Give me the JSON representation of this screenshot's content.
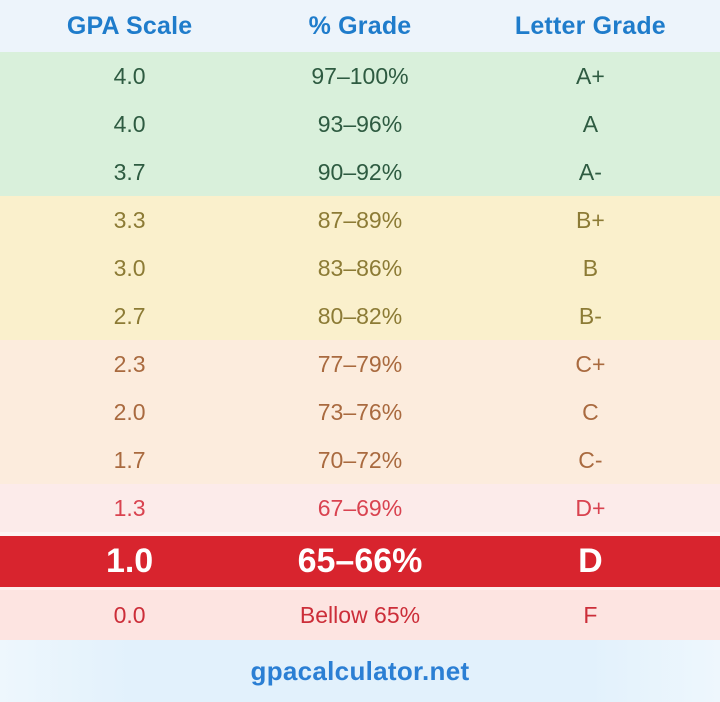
{
  "header": {
    "columns": [
      "GPA Scale",
      "% Grade",
      "Letter Grade"
    ]
  },
  "rows": [
    {
      "gpa": "4.0",
      "percent": "97–100%",
      "letter": "A+",
      "tier": "a"
    },
    {
      "gpa": "4.0",
      "percent": "93–96%",
      "letter": "A",
      "tier": "a"
    },
    {
      "gpa": "3.7",
      "percent": "90–92%",
      "letter": "A-",
      "tier": "a"
    },
    {
      "gpa": "3.3",
      "percent": "87–89%",
      "letter": "B+",
      "tier": "b"
    },
    {
      "gpa": "3.0",
      "percent": "83–86%",
      "letter": "B",
      "tier": "b"
    },
    {
      "gpa": "2.7",
      "percent": "80–82%",
      "letter": "B-",
      "tier": "b"
    },
    {
      "gpa": "2.3",
      "percent": "77–79%",
      "letter": "C+",
      "tier": "c"
    },
    {
      "gpa": "2.0",
      "percent": "73–76%",
      "letter": "C",
      "tier": "c"
    },
    {
      "gpa": "1.7",
      "percent": "70–72%",
      "letter": "C-",
      "tier": "c"
    },
    {
      "gpa": "1.3",
      "percent": "67–69%",
      "letter": "D+",
      "tier": "d-plus"
    },
    {
      "gpa": "1.0",
      "percent": "65–66%",
      "letter": "D",
      "tier": "d-highlight"
    },
    {
      "gpa": "0.0",
      "percent": "Bellow 65%",
      "letter": "F",
      "tier": "f"
    }
  ],
  "footer": {
    "site": "gpacalculator.net"
  },
  "colors": {
    "header_bg": "#edf4fb",
    "header_text": "#1f7ccb",
    "a_bg": "#d9f0db",
    "a_text": "#2e5b41",
    "b_bg": "#faf0cc",
    "b_text": "#8c7b35",
    "c_bg": "#fcecdd",
    "c_text": "#a96a3f",
    "d_plus_bg": "#fcebea",
    "d_plus_text": "#d94350",
    "d_highlight_bg": "#d8242e",
    "d_highlight_text": "#ffffff",
    "f_bg": "#fde4e1",
    "f_text": "#cc2e39",
    "footer_bg": "#e2f1fc",
    "footer_text": "#2b7fd4"
  },
  "chart_data": {
    "type": "table",
    "title": "GPA Scale to Percent Grade to Letter Grade conversion",
    "columns": [
      "GPA Scale",
      "% Grade",
      "Letter Grade"
    ],
    "rows": [
      [
        "4.0",
        "97–100%",
        "A+"
      ],
      [
        "4.0",
        "93–96%",
        "A"
      ],
      [
        "3.7",
        "90–92%",
        "A-"
      ],
      [
        "3.3",
        "87–89%",
        "B+"
      ],
      [
        "3.0",
        "83–86%",
        "B"
      ],
      [
        "2.7",
        "80–82%",
        "B-"
      ],
      [
        "2.3",
        "77–79%",
        "C+"
      ],
      [
        "2.0",
        "73–76%",
        "C"
      ],
      [
        "1.7",
        "70–72%",
        "C-"
      ],
      [
        "1.3",
        "67–69%",
        "D+"
      ],
      [
        "1.0",
        "65–66%",
        "D"
      ],
      [
        "0.0",
        "Bellow 65%",
        "F"
      ]
    ],
    "highlighted_row": [
      "1.0",
      "65–66%",
      "D"
    ],
    "row_color_groups": {
      "green": [
        "A+",
        "A",
        "A-"
      ],
      "yellow": [
        "B+",
        "B",
        "B-"
      ],
      "peach": [
        "C+",
        "C",
        "C-"
      ],
      "pink": [
        "D+",
        "F"
      ],
      "red_highlight": [
        "D"
      ]
    }
  }
}
